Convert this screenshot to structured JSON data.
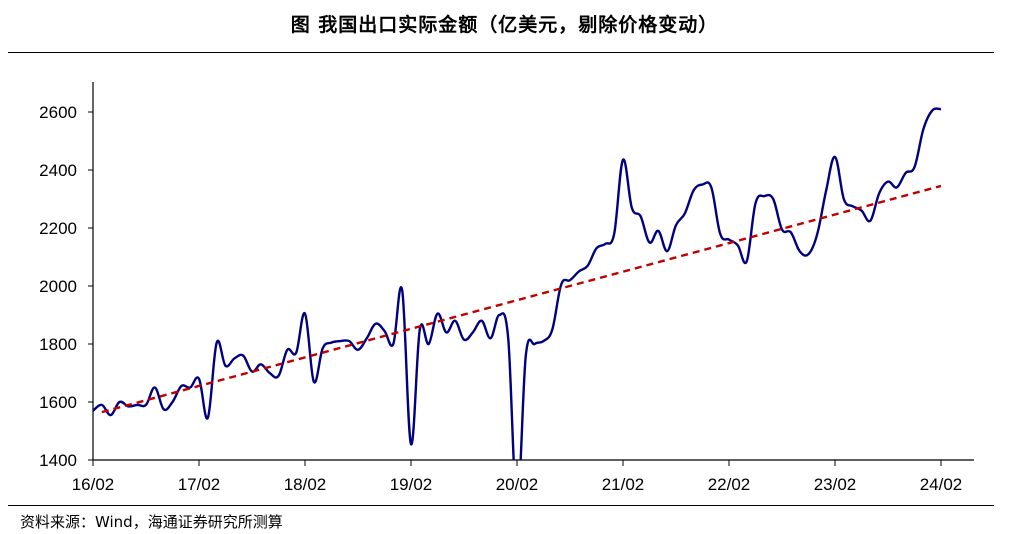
{
  "header": {
    "title": "图 我国出口实际金额（亿美元，剔除价格变动）"
  },
  "footer": {
    "source": "资料来源：Wind，海通证券研究所测算"
  },
  "colors": {
    "series": "#000080",
    "trend": "#c00000",
    "axis": "#000000"
  },
  "chart_data": {
    "type": "line",
    "title": "图 我国出口实际金额（亿美元，剔除价格变动）",
    "xlabel": "",
    "ylabel": "",
    "ylim": [
      1400,
      2600
    ],
    "yticks": [
      1400,
      1600,
      1800,
      2000,
      2200,
      2400,
      2600
    ],
    "xticks": [
      "16/02",
      "17/02",
      "18/02",
      "19/02",
      "20/02",
      "21/02",
      "22/02",
      "23/02",
      "24/02"
    ],
    "xlim": [
      0,
      96
    ],
    "grid": false,
    "legend": "none",
    "series": [
      {
        "style": "solid",
        "x": [
          0,
          1,
          2,
          3,
          4,
          5,
          6,
          7,
          8,
          9,
          10,
          11,
          12,
          13,
          14,
          15,
          16,
          17,
          18,
          19,
          20,
          21,
          22,
          23,
          24,
          25,
          26,
          27,
          28,
          29,
          30,
          31,
          32,
          33,
          34,
          35,
          36,
          37,
          38,
          39,
          40,
          41,
          42,
          43,
          44,
          45,
          46,
          47,
          48,
          49,
          50,
          51,
          52,
          53,
          54,
          55,
          56,
          57,
          58,
          59,
          60,
          61,
          62,
          63,
          64,
          65,
          66,
          67,
          68,
          69,
          70,
          71,
          72,
          73,
          74,
          75,
          76,
          77,
          78,
          79,
          80,
          81,
          82,
          83,
          84,
          85,
          86,
          87,
          88,
          89,
          90,
          91,
          92,
          93,
          94,
          95,
          96
        ],
        "values": [
          1570,
          1590,
          1555,
          1600,
          1585,
          1590,
          1590,
          1650,
          1575,
          1600,
          1655,
          1650,
          1680,
          1545,
          1805,
          1725,
          1750,
          1760,
          1705,
          1730,
          1700,
          1690,
          1780,
          1770,
          1905,
          1670,
          1785,
          1805,
          1810,
          1810,
          1780,
          1820,
          1870,
          1845,
          1800,
          1985,
          1455,
          1850,
          1800,
          1905,
          1840,
          1880,
          1815,
          1840,
          1880,
          1820,
          1900,
          1820,
          1245,
          1760,
          1800,
          1810,
          1850,
          2005,
          2020,
          2050,
          2070,
          2130,
          2145,
          2180,
          2435,
          2270,
          2240,
          2150,
          2190,
          2120,
          2210,
          2250,
          2330,
          2350,
          2340,
          2180,
          2160,
          2140,
          2085,
          2285,
          2310,
          2300,
          2195,
          2185,
          2120,
          2110,
          2180,
          2330,
          2445,
          2300,
          2275,
          2260,
          2225,
          2320,
          2360,
          2340,
          2390,
          2410,
          2540,
          2605,
          2610
        ]
      },
      {
        "style": "dashed",
        "x": [
          1,
          96
        ],
        "values": [
          1565,
          2345
        ]
      }
    ]
  }
}
